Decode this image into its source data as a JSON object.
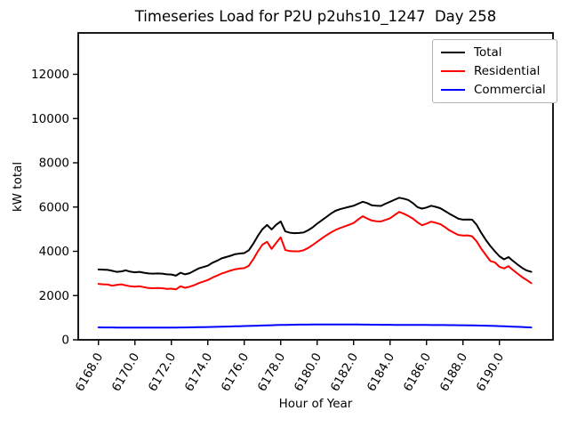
{
  "chart_data": {
    "type": "line",
    "title": "Timeseries Load for P2U p2uhs10_1247  Day 258",
    "xlabel": "Hour of Year",
    "ylabel": "kW total",
    "grid": false,
    "legend_position": "upper right",
    "xlim": [
      6166.89,
      6192.94
    ],
    "ylim": [
      0,
      13870
    ],
    "xticks": [
      6168,
      6170,
      6172,
      6174,
      6176,
      6178,
      6180,
      6182,
      6184,
      6186,
      6188,
      6190
    ],
    "xtick_labels": [
      "6168.0",
      "6170.0",
      "6172.0",
      "6174.0",
      "6176.0",
      "6178.0",
      "6180.0",
      "6182.0",
      "6184.0",
      "6186.0",
      "6188.0",
      "6190.0"
    ],
    "yticks": [
      0,
      2000,
      4000,
      6000,
      8000,
      10000,
      12000
    ],
    "ytick_labels": [
      "0",
      "2000",
      "4000",
      "6000",
      "8000",
      "10000",
      "12000"
    ],
    "x": [
      6168.0,
      6168.25,
      6168.5,
      6168.75,
      6169.0,
      6169.25,
      6169.5,
      6169.75,
      6170.0,
      6170.25,
      6170.5,
      6170.75,
      6171.0,
      6171.25,
      6171.5,
      6171.75,
      6172.0,
      6172.25,
      6172.5,
      6172.75,
      6173.0,
      6173.25,
      6173.5,
      6173.75,
      6174.0,
      6174.25,
      6174.5,
      6174.75,
      6175.0,
      6175.25,
      6175.5,
      6175.75,
      6176.0,
      6176.25,
      6176.5,
      6176.75,
      6177.0,
      6177.25,
      6177.5,
      6177.75,
      6178.0,
      6178.25,
      6178.5,
      6178.75,
      6179.0,
      6179.25,
      6179.5,
      6179.75,
      6180.0,
      6180.25,
      6180.5,
      6180.75,
      6181.0,
      6181.25,
      6181.5,
      6181.75,
      6182.0,
      6182.25,
      6182.5,
      6182.75,
      6183.0,
      6183.25,
      6183.5,
      6183.75,
      6184.0,
      6184.25,
      6184.5,
      6184.75,
      6185.0,
      6185.25,
      6185.5,
      6185.75,
      6186.0,
      6186.25,
      6186.5,
      6186.75,
      6187.0,
      6187.25,
      6187.5,
      6187.75,
      6188.0,
      6188.25,
      6188.5,
      6188.75,
      6189.0,
      6189.25,
      6189.5,
      6189.75,
      6190.0,
      6190.25,
      6190.5,
      6190.75,
      6191.0,
      6191.25,
      6191.5,
      6191.75
    ],
    "series": [
      {
        "name": "Total",
        "color": "#000000",
        "values": [
          3180,
          3170,
          3160,
          3120,
          3070,
          3090,
          3140,
          3080,
          3050,
          3070,
          3030,
          3000,
          2990,
          3000,
          2990,
          2960,
          2950,
          2900,
          3030,
          2960,
          3010,
          3120,
          3230,
          3290,
          3350,
          3480,
          3570,
          3680,
          3740,
          3800,
          3870,
          3900,
          3920,
          4050,
          4350,
          4700,
          5000,
          5190,
          4990,
          5200,
          5350,
          4900,
          4840,
          4820,
          4830,
          4850,
          4950,
          5080,
          5250,
          5400,
          5550,
          5700,
          5830,
          5900,
          5960,
          6010,
          6060,
          6150,
          6240,
          6180,
          6080,
          6060,
          6050,
          6150,
          6240,
          6330,
          6420,
          6380,
          6320,
          6180,
          6000,
          5930,
          5980,
          6060,
          6010,
          5950,
          5830,
          5700,
          5590,
          5470,
          5430,
          5440,
          5430,
          5200,
          4840,
          4520,
          4240,
          4000,
          3780,
          3640,
          3740,
          3560,
          3400,
          3250,
          3130,
          3070
        ]
      },
      {
        "name": "Residential",
        "color": "#ff0000",
        "values": [
          2530,
          2510,
          2500,
          2450,
          2480,
          2510,
          2460,
          2420,
          2400,
          2420,
          2380,
          2340,
          2330,
          2340,
          2330,
          2300,
          2310,
          2280,
          2420,
          2350,
          2400,
          2470,
          2560,
          2630,
          2700,
          2810,
          2900,
          2990,
          3060,
          3130,
          3190,
          3220,
          3240,
          3350,
          3650,
          4000,
          4300,
          4430,
          4110,
          4380,
          4630,
          4060,
          4010,
          4000,
          4000,
          4050,
          4150,
          4280,
          4430,
          4580,
          4720,
          4850,
          4960,
          5050,
          5120,
          5200,
          5280,
          5440,
          5590,
          5480,
          5390,
          5360,
          5350,
          5420,
          5490,
          5640,
          5780,
          5700,
          5600,
          5480,
          5310,
          5180,
          5250,
          5340,
          5290,
          5230,
          5100,
          4950,
          4840,
          4740,
          4710,
          4720,
          4680,
          4450,
          4120,
          3840,
          3560,
          3500,
          3300,
          3230,
          3330,
          3150,
          2990,
          2830,
          2700,
          2560
        ]
      },
      {
        "name": "Commercial",
        "color": "#0000ff",
        "values": [
          562,
          560,
          559,
          558,
          556,
          555,
          554,
          553,
          552,
          551,
          551,
          550,
          550,
          551,
          552,
          553,
          554,
          556,
          558,
          560,
          563,
          566,
          570,
          574,
          578,
          583,
          588,
          593,
          598,
          604,
          610,
          616,
          622,
          628,
          634,
          640,
          647,
          654,
          660,
          666,
          672,
          677,
          681,
          684,
          686,
          688,
          689,
          690,
          690,
          691,
          691,
          692,
          692,
          693,
          693,
          692,
          691,
          690,
          688,
          686,
          684,
          682,
          680,
          679,
          678,
          677,
          676,
          675,
          674,
          673,
          672,
          671,
          670,
          669,
          668,
          667,
          666,
          664,
          662,
          660,
          658,
          655,
          652,
          648,
          644,
          639,
          633,
          627,
          620,
          612,
          604,
          596,
          588,
          578,
          568,
          558
        ]
      }
    ]
  }
}
